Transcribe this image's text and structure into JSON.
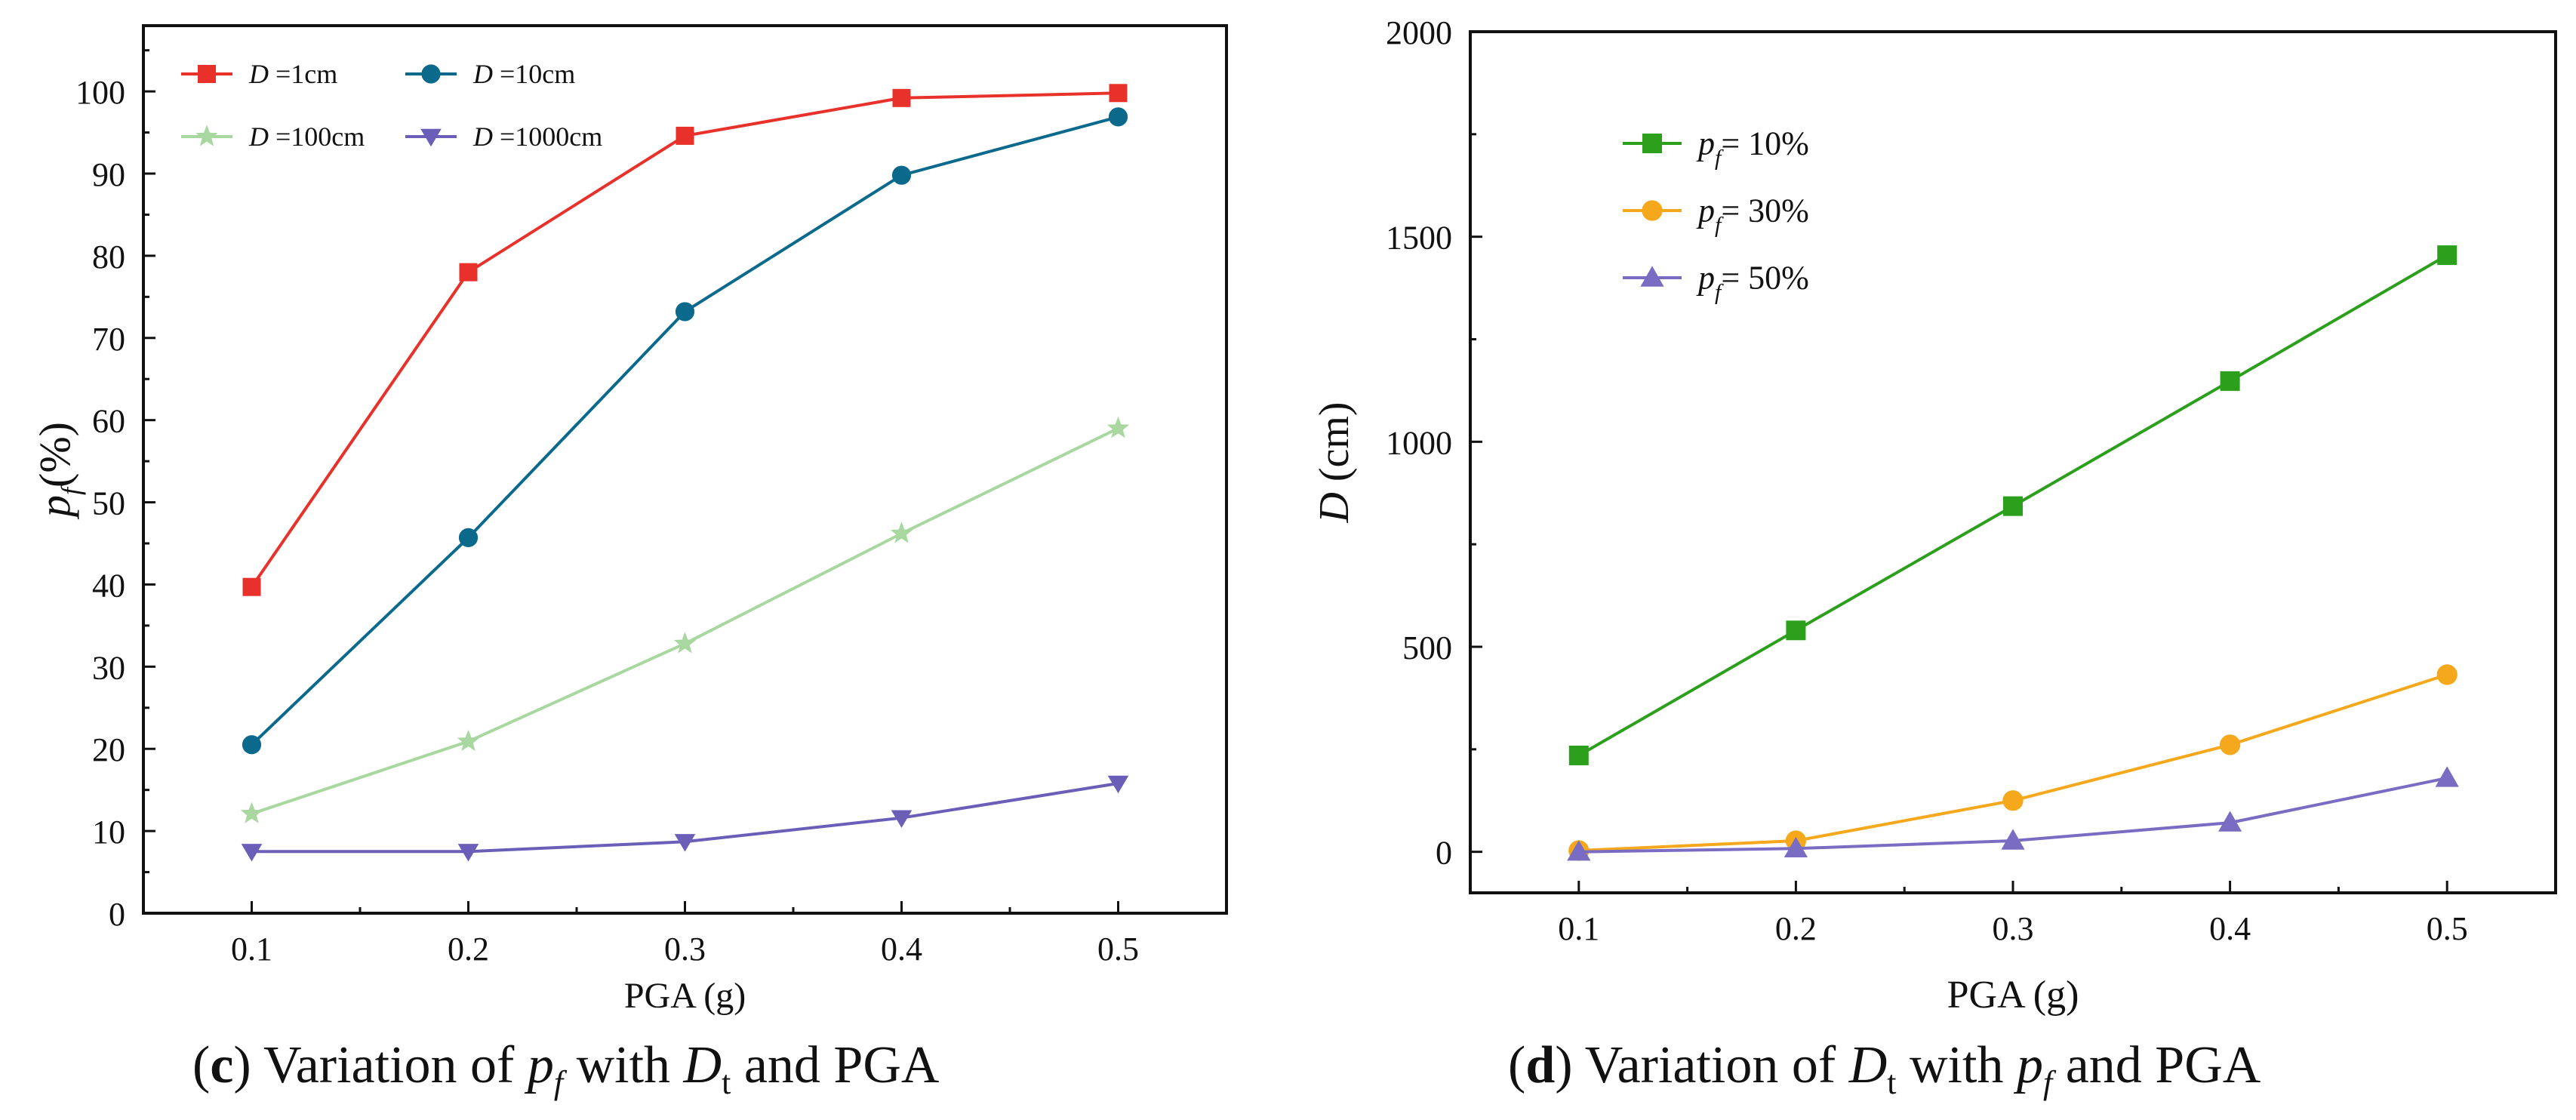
{
  "chart_data": [
    {
      "type": "line",
      "title": "",
      "xlabel": "PGA (g)",
      "ylabel": {
        "main": "p",
        "sub": "f",
        "suffix": "(%)"
      },
      "x": [
        0.1,
        0.2,
        0.3,
        0.4,
        0.5
      ],
      "xticks": [
        "0.1",
        "0.2",
        "0.3",
        "0.4",
        "0.5"
      ],
      "xlim": [
        0.05,
        0.55
      ],
      "ylim": [
        0,
        108
      ],
      "yticks": [
        "0",
        "10",
        "20",
        "30",
        "40",
        "50",
        "60",
        "70",
        "80",
        "90",
        "100"
      ],
      "grid": false,
      "legend_position": "top-left",
      "series": [
        {
          "name": "D =1cm",
          "legend_var": "D",
          "legend_rest": " =1cm",
          "color": "#e8312a",
          "marker": "square",
          "values": [
            39.7,
            78.0,
            94.6,
            99.2,
            99.8
          ]
        },
        {
          "name": "D =10cm",
          "legend_var": "D",
          "legend_rest": " =10cm",
          "color": "#0b6a8c",
          "marker": "circle",
          "values": [
            20.5,
            45.7,
            73.2,
            89.8,
            96.9
          ]
        },
        {
          "name": "D =100cm",
          "legend_var": "D",
          "legend_rest": " =100cm",
          "color": "#a8d8a0",
          "marker": "star",
          "values": [
            12.1,
            20.9,
            32.8,
            46.2,
            59.0
          ]
        },
        {
          "name": "D =1000cm",
          "legend_var": "D",
          "legend_rest": " =1000cm",
          "color": "#6b5eb8",
          "marker": "triangle-down",
          "values": [
            7.5,
            7.5,
            8.7,
            11.6,
            15.8
          ]
        }
      ],
      "caption": {
        "label": "c",
        "pre": " Variation of ",
        "var1": "p",
        "sub1": "f",
        "mid1": " with ",
        "var2": "D",
        "sub2": "t",
        "post": " and PGA"
      }
    },
    {
      "type": "line",
      "title": "",
      "xlabel": "PGA (g)",
      "ylabel": {
        "main": "D",
        "sub": "",
        "suffix": " (cm)"
      },
      "x": [
        0.1,
        0.2,
        0.3,
        0.4,
        0.5
      ],
      "xticks": [
        "0.1",
        "0.2",
        "0.3",
        "0.4",
        "0.5"
      ],
      "xlim": [
        0.05,
        0.55
      ],
      "ylim": [
        -100,
        2000
      ],
      "yticks": [
        "0",
        "500",
        "1000",
        "1500",
        "2000"
      ],
      "grid": false,
      "legend_position": "top-left",
      "series": [
        {
          "name": "pf= 10%",
          "legend_var": "p",
          "legend_sub": "f",
          "legend_rest": "= 10%",
          "color": "#2ca01c",
          "marker": "square",
          "values": [
            235,
            540,
            843,
            1148,
            1455
          ]
        },
        {
          "name": "pf= 30%",
          "legend_var": "p",
          "legend_sub": "f",
          "legend_rest": "= 30%",
          "color": "#f5a81c",
          "marker": "circle",
          "values": [
            3,
            27,
            125,
            261,
            432
          ]
        },
        {
          "name": "pf= 50%",
          "legend_var": "p",
          "legend_sub": "f",
          "legend_rest": "= 50%",
          "color": "#7a6cc2",
          "marker": "triangle-up",
          "values": [
            0,
            8,
            27,
            71,
            180
          ]
        }
      ],
      "caption": {
        "label": "d",
        "pre": " Variation of ",
        "var1": "D",
        "sub1": "t",
        "mid1": " with ",
        "var2": "p",
        "sub2": "f",
        "post": " and PGA"
      }
    }
  ]
}
